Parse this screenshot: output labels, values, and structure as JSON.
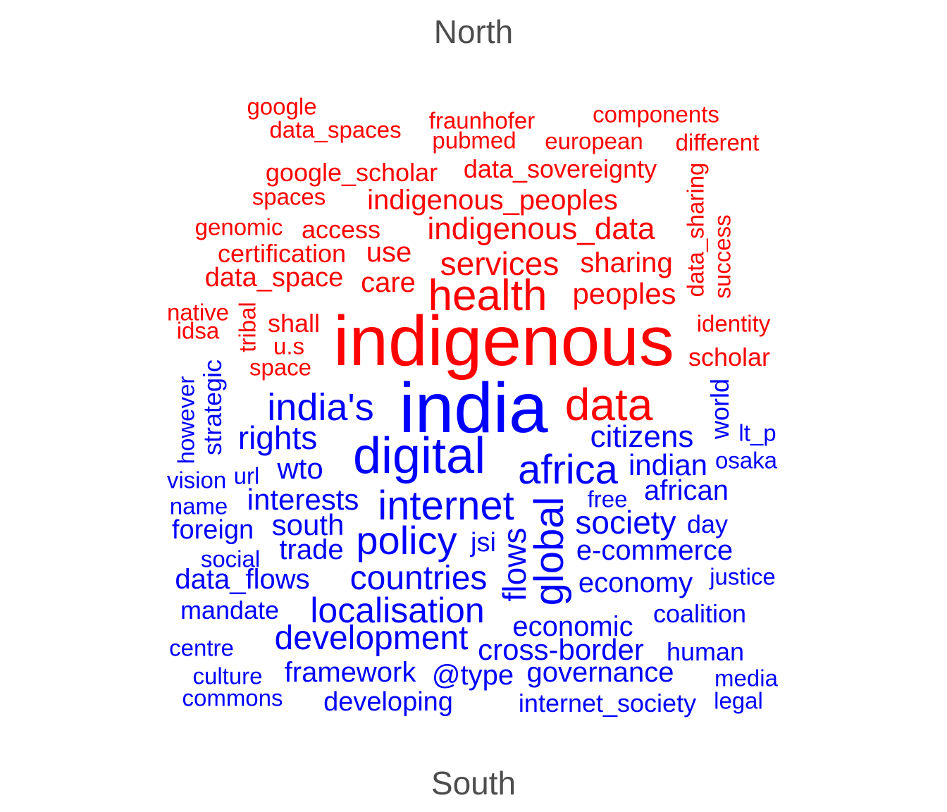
{
  "groups": {
    "north": {
      "label": "North",
      "color": "#ff0000"
    },
    "south": {
      "label": "South",
      "color": "#0000ff"
    }
  },
  "words": [
    {
      "id": "google",
      "text": "google",
      "group": "north",
      "weight": 1
    },
    {
      "id": "data_spaces",
      "text": "data_spaces",
      "group": "north",
      "weight": 1
    },
    {
      "id": "fraunhofer",
      "text": "fraunhofer",
      "group": "north",
      "weight": 1
    },
    {
      "id": "components",
      "text": "components",
      "group": "north",
      "weight": 1
    },
    {
      "id": "pubmed",
      "text": "pubmed",
      "group": "north",
      "weight": 1
    },
    {
      "id": "european",
      "text": "european",
      "group": "north",
      "weight": 1
    },
    {
      "id": "different",
      "text": "different",
      "group": "north",
      "weight": 1
    },
    {
      "id": "google_scholar",
      "text": "google_scholar",
      "group": "north",
      "weight": 1
    },
    {
      "id": "data_sovereignty",
      "text": "data_sovereignty",
      "group": "north",
      "weight": 1
    },
    {
      "id": "data_sharing",
      "text": "data_sharing",
      "group": "north",
      "weight": 1
    },
    {
      "id": "spaces",
      "text": "spaces",
      "group": "north",
      "weight": 1
    },
    {
      "id": "indigenous_peoples",
      "text": "indigenous_peoples",
      "group": "north",
      "weight": 1
    },
    {
      "id": "success",
      "text": "success",
      "group": "north",
      "weight": 1
    },
    {
      "id": "genomic",
      "text": "genomic",
      "group": "north",
      "weight": 1
    },
    {
      "id": "access",
      "text": "access",
      "group": "north",
      "weight": 1
    },
    {
      "id": "indigenous_data",
      "text": "indigenous_data",
      "group": "north",
      "weight": 1
    },
    {
      "id": "certification",
      "text": "certification",
      "group": "north",
      "weight": 1
    },
    {
      "id": "use",
      "text": "use",
      "group": "north",
      "weight": 1
    },
    {
      "id": "services",
      "text": "services",
      "group": "north",
      "weight": 1
    },
    {
      "id": "sharing",
      "text": "sharing",
      "group": "north",
      "weight": 1
    },
    {
      "id": "data_space",
      "text": "data_space",
      "group": "north",
      "weight": 1
    },
    {
      "id": "care",
      "text": "care",
      "group": "north",
      "weight": 1
    },
    {
      "id": "health",
      "text": "health",
      "group": "north",
      "weight": 1
    },
    {
      "id": "peoples",
      "text": "peoples",
      "group": "north",
      "weight": 1
    },
    {
      "id": "native",
      "text": "native",
      "group": "north",
      "weight": 1
    },
    {
      "id": "tribal",
      "text": "tribal",
      "group": "north",
      "weight": 1
    },
    {
      "id": "idsa",
      "text": "idsa",
      "group": "north",
      "weight": 1
    },
    {
      "id": "shall",
      "text": "shall",
      "group": "north",
      "weight": 1
    },
    {
      "id": "indigenous",
      "text": "indigenous",
      "group": "north",
      "weight": 1
    },
    {
      "id": "identity",
      "text": "identity",
      "group": "north",
      "weight": 1
    },
    {
      "id": "u_s",
      "text": "u.s",
      "group": "north",
      "weight": 1
    },
    {
      "id": "scholar",
      "text": "scholar",
      "group": "north",
      "weight": 1
    },
    {
      "id": "space",
      "text": "space",
      "group": "north",
      "weight": 1
    },
    {
      "id": "data",
      "text": "data",
      "group": "north",
      "weight": 1
    },
    {
      "id": "strategic",
      "text": "strategic",
      "group": "south",
      "weight": 1
    },
    {
      "id": "however",
      "text": "however",
      "group": "south",
      "weight": 1
    },
    {
      "id": "india_s",
      "text": "india's",
      "group": "south",
      "weight": 1
    },
    {
      "id": "india",
      "text": "india",
      "group": "south",
      "weight": 1
    },
    {
      "id": "world",
      "text": "world",
      "group": "south",
      "weight": 1
    },
    {
      "id": "lt_p",
      "text": "lt_p",
      "group": "south",
      "weight": 1
    },
    {
      "id": "rights",
      "text": "rights",
      "group": "south",
      "weight": 1
    },
    {
      "id": "digital",
      "text": "digital",
      "group": "south",
      "weight": 1
    },
    {
      "id": "citizens",
      "text": "citizens",
      "group": "south",
      "weight": 1
    },
    {
      "id": "wto",
      "text": "wto",
      "group": "south",
      "weight": 1
    },
    {
      "id": "indian",
      "text": "indian",
      "group": "south",
      "weight": 1
    },
    {
      "id": "osaka",
      "text": "osaka",
      "group": "south",
      "weight": 1
    },
    {
      "id": "url",
      "text": "url",
      "group": "south",
      "weight": 1
    },
    {
      "id": "vision",
      "text": "vision",
      "group": "south",
      "weight": 1
    },
    {
      "id": "africa",
      "text": "africa",
      "group": "south",
      "weight": 1
    },
    {
      "id": "african",
      "text": "african",
      "group": "south",
      "weight": 1
    },
    {
      "id": "interests",
      "text": "interests",
      "group": "south",
      "weight": 1
    },
    {
      "id": "internet",
      "text": "internet",
      "group": "south",
      "weight": 1
    },
    {
      "id": "free",
      "text": "free",
      "group": "south",
      "weight": 1
    },
    {
      "id": "name",
      "text": "name",
      "group": "south",
      "weight": 1
    },
    {
      "id": "global",
      "text": "global",
      "group": "south",
      "weight": 1
    },
    {
      "id": "society",
      "text": "society",
      "group": "south",
      "weight": 1
    },
    {
      "id": "day",
      "text": "day",
      "group": "south",
      "weight": 1
    },
    {
      "id": "south",
      "text": "south",
      "group": "south",
      "weight": 1
    },
    {
      "id": "foreign",
      "text": "foreign",
      "group": "south",
      "weight": 1
    },
    {
      "id": "policy",
      "text": "policy",
      "group": "south",
      "weight": 1
    },
    {
      "id": "flows",
      "text": "flows",
      "group": "south",
      "weight": 1
    },
    {
      "id": "jsi",
      "text": "jsi",
      "group": "south",
      "weight": 1
    },
    {
      "id": "e_commerce",
      "text": "e-commerce",
      "group": "south",
      "weight": 1
    },
    {
      "id": "trade",
      "text": "trade",
      "group": "south",
      "weight": 1
    },
    {
      "id": "social",
      "text": "social",
      "group": "south",
      "weight": 1
    },
    {
      "id": "justice",
      "text": "justice",
      "group": "south",
      "weight": 1
    },
    {
      "id": "data_flows",
      "text": "data_flows",
      "group": "south",
      "weight": 1
    },
    {
      "id": "countries",
      "text": "countries",
      "group": "south",
      "weight": 1
    },
    {
      "id": "economy",
      "text": "economy",
      "group": "south",
      "weight": 1
    },
    {
      "id": "mandate",
      "text": "mandate",
      "group": "south",
      "weight": 1
    },
    {
      "id": "localisation",
      "text": "localisation",
      "group": "south",
      "weight": 1
    },
    {
      "id": "coalition",
      "text": "coalition",
      "group": "south",
      "weight": 1
    },
    {
      "id": "economic",
      "text": "economic",
      "group": "south",
      "weight": 1
    },
    {
      "id": "development",
      "text": "development",
      "group": "south",
      "weight": 1
    },
    {
      "id": "centre",
      "text": "centre",
      "group": "south",
      "weight": 1
    },
    {
      "id": "cross_border",
      "text": "cross-border",
      "group": "south",
      "weight": 1
    },
    {
      "id": "human",
      "text": "human",
      "group": "south",
      "weight": 1
    },
    {
      "id": "culture",
      "text": "culture",
      "group": "south",
      "weight": 1
    },
    {
      "id": "framework",
      "text": "framework",
      "group": "south",
      "weight": 1
    },
    {
      "id": "type",
      "text": "@type",
      "group": "south",
      "weight": 1
    },
    {
      "id": "governance",
      "text": "governance",
      "group": "south",
      "weight": 1
    },
    {
      "id": "media",
      "text": "media",
      "group": "south",
      "weight": 1
    },
    {
      "id": "commons",
      "text": "commons",
      "group": "south",
      "weight": 1
    },
    {
      "id": "developing",
      "text": "developing",
      "group": "south",
      "weight": 1
    },
    {
      "id": "internet_society",
      "text": "internet_society",
      "group": "south",
      "weight": 1
    },
    {
      "id": "legal",
      "text": "legal",
      "group": "south",
      "weight": 1
    }
  ]
}
